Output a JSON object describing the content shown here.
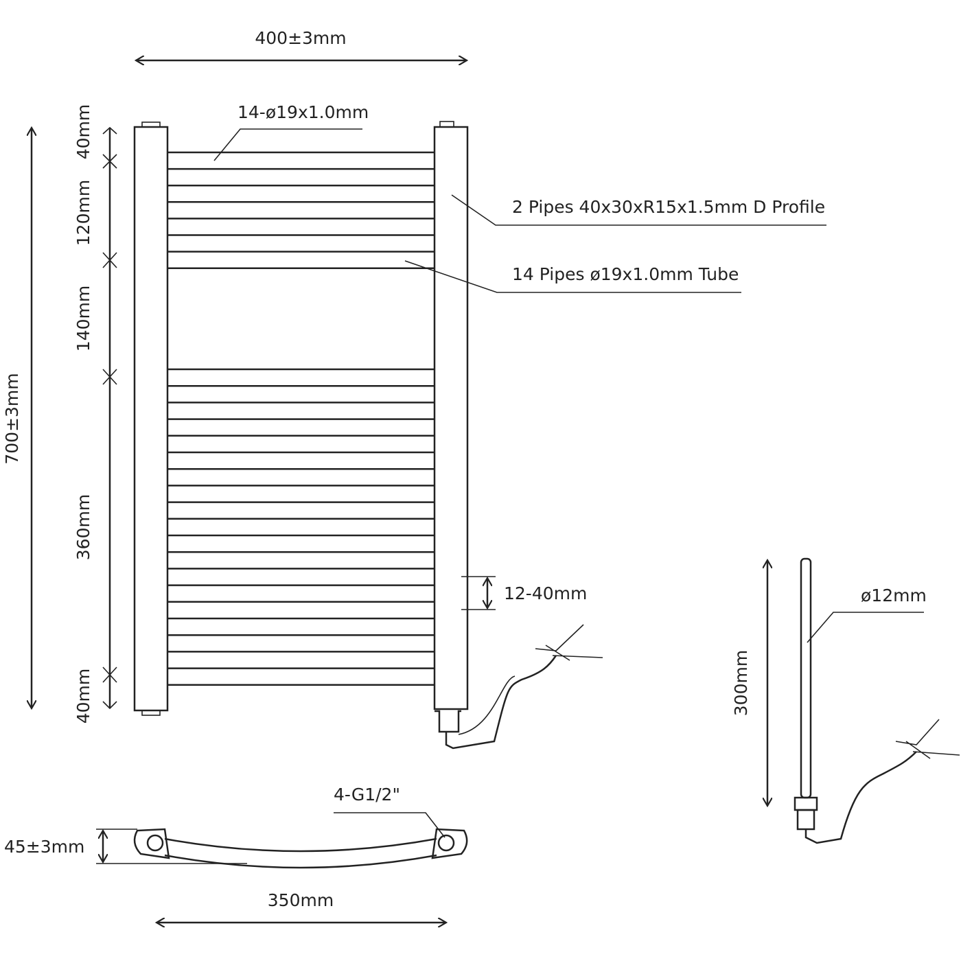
{
  "dimensions": {
    "width": "400±3mm",
    "height": "700±3mm",
    "rail_spec": "14-ø19x1.0mm",
    "segment_top": "40mm",
    "segment_upper_group": "120mm",
    "segment_gap": "140mm",
    "segment_lower_group": "360mm",
    "segment_bottom": "40mm",
    "element_offset": "12-40mm",
    "connections": "4-G1/2\"",
    "depth": "45±3mm",
    "centres": "350mm",
    "element_diameter": "ø12mm",
    "element_length": "300mm"
  },
  "labels": {
    "side_pipes": "2 Pipes 40x30xR15x1.5mm D Profile",
    "rail_pipes": "14 Pipes ø19x1.0mm Tube"
  },
  "colors": {
    "line": "#222222",
    "background": "#ffffff"
  }
}
